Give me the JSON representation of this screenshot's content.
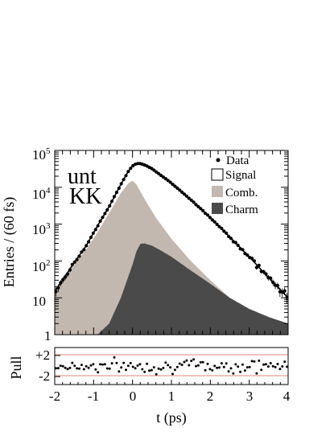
{
  "chart_data": [
    {
      "type": "area",
      "title": "",
      "annotation_line1": "unt",
      "annotation_line2": "KK",
      "xlabel": "t (ps)",
      "ylabel": "Entries / (60 fs)",
      "xlim": [
        -2,
        4
      ],
      "ylim": [
        1,
        100000
      ],
      "yscale": "log",
      "ytick_labels": {
        "b": "10",
        "e1": "1",
        "e2": "2",
        "e3": "3",
        "e4": "4",
        "e5": "5",
        "one": "1",
        "ten": "10"
      },
      "legend": {
        "placement": "top-right",
        "entries": [
          {
            "label": "Data",
            "marker": "point"
          },
          {
            "label": "Signal",
            "marker": "open-box"
          },
          {
            "label": "Comb.",
            "marker": "fill",
            "color": "#c2b8af"
          },
          {
            "label": "Charm",
            "marker": "fill",
            "color": "#4a4a4a"
          }
        ]
      },
      "colors": {
        "comb": "#c2b8af",
        "charm": "#4a4a4a",
        "fit": "#000000",
        "data": "#000000"
      },
      "series": [
        {
          "name": "Charm",
          "x": [
            -0.9,
            -0.6,
            -0.3,
            0.0,
            0.1,
            0.2,
            0.3,
            0.5,
            0.7,
            1.0,
            1.5,
            2.0,
            2.5,
            3.0,
            3.5,
            4.0
          ],
          "values": [
            1,
            2,
            10,
            80,
            180,
            290,
            300,
            260,
            200,
            130,
            55,
            24,
            10,
            5,
            3,
            2
          ]
        },
        {
          "name": "Comb.",
          "x": [
            -2.0,
            -1.8,
            -1.5,
            -1.2,
            -0.9,
            -0.6,
            -0.3,
            -0.1,
            0.0,
            0.1,
            0.3,
            0.6,
            1.0,
            1.5,
            2.0,
            2.5,
            3.0,
            3.5,
            4.0
          ],
          "values": [
            15,
            30,
            80,
            200,
            600,
            2000,
            7000,
            13000,
            15000,
            12000,
            5000,
            1500,
            400,
            100,
            30,
            10,
            5,
            3,
            2
          ]
        }
      ],
      "fit_line": {
        "x": [
          -2.0,
          -1.8,
          -1.5,
          -1.2,
          -0.9,
          -0.6,
          -0.3,
          -0.1,
          0.0,
          0.1,
          0.2,
          0.3,
          0.5,
          1.0,
          1.5,
          2.0,
          2.5,
          3.0,
          3.5,
          4.0
        ],
        "values": [
          15,
          30,
          90,
          250,
          900,
          3000,
          12000,
          28000,
          38000,
          44000,
          44000,
          41000,
          32000,
          13000,
          4500,
          1500,
          450,
          130,
          35,
          10
        ]
      }
    },
    {
      "type": "scatter",
      "ylabel": "Pull",
      "ytick_labels": [
        "+2",
        "-2"
      ],
      "reference_lines": [
        2,
        -2
      ],
      "xlim": [
        -2,
        4
      ],
      "ylim": [
        -3.5,
        3.5
      ],
      "xtick_labels": [
        "-2",
        "-1",
        "0",
        "1",
        "2",
        "3",
        "4"
      ],
      "xlabel": "t (ps)"
    }
  ]
}
